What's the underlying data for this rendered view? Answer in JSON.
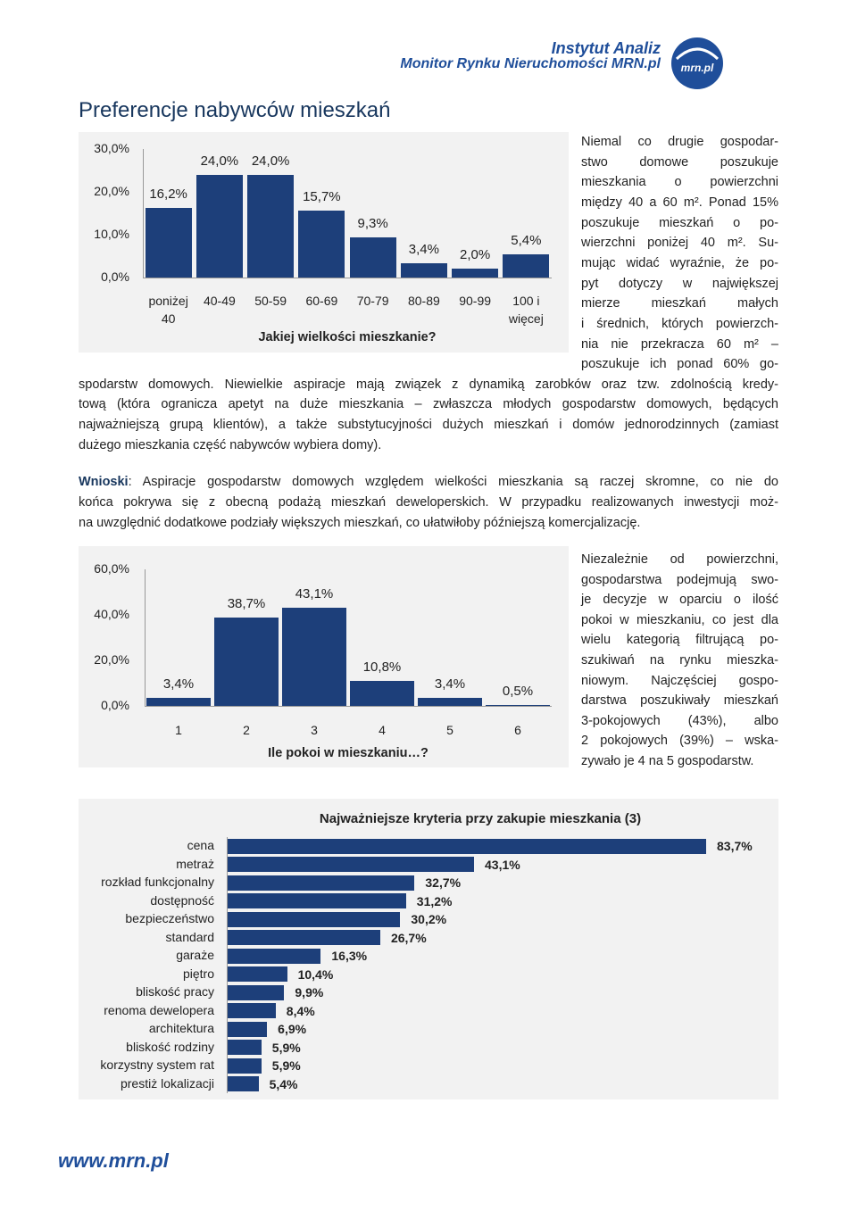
{
  "header": {
    "institute": "Instytut Analiz",
    "publication": "Monitor Rynku Nieruchomości MRN.pl",
    "logo_text": "mrn.pl"
  },
  "title": "Preferencje nabywców mieszkań",
  "paragraph_1": {
    "lines": [
      "Niemal co drugie gospodar-",
      "stwo domowe poszukuje",
      "mieszkania o powierzchni",
      "między 40 a 60 m². Ponad 15%",
      "poszukuje mieszkań o po-",
      "wierzchni poniżej 40 m². Su-",
      "mując widać wyraźnie, że po-",
      "pyt dotyczy w największej",
      "mierze mieszkań małych",
      "i średnich, których powierzch-",
      "nia nie przekracza 60 m² –",
      "poszukuje ich ponad 60% go-",
      "spodarstw domowych. Niewielkie aspiracje mają związek z dynamiką zarobków oraz tzw. zdolnością kredy-",
      "tową (która ogranicza apetyt na duże mieszkania – zwłaszcza młodych gospodarstw domowych, będących",
      "najważniejszą grupą klientów), a także substytucyjności dużych mieszkań i domów jednorodzinnych (zamiast",
      "dużego mieszkania część nabywców wybiera domy)."
    ]
  },
  "conclusion": {
    "label": "Wnioski",
    "lines": [
      ": Aspiracje gospodarstw domowych względem wielkości mieszkania są raczej skromne, co nie do",
      "końca pokrywa się z obecną podażą mieszkań deweloperskich. W przypadku realizowanych inwestycji moż-",
      "na uwzględnić dodatkowe podziały większych mieszkań, co ułatwiłoby późniejszą komercjalizację."
    ]
  },
  "paragraph_2": {
    "lines": [
      "Niezależnie od powierzchni,",
      "gospodarstwa podejmują swo-",
      "je decyzje w oparciu o ilość",
      "pokoi w mieszkaniu, co jest dla",
      "wielu kategorią filtrującą po-",
      "szukiwań na rynku mieszka-",
      "niowym. Najczęściej gospo-",
      "darstwa poszukiwały mieszkań",
      "3-pokojowych (43%), albo",
      "2 pokojowych (39%) – wska-",
      "zywało je 4 na 5 gospodarstw."
    ]
  },
  "chart_data": [
    {
      "type": "bar",
      "x_label": "Jakiej wielkości mieszkanie?",
      "categories": [
        "poniżej 40",
        "40-49",
        "50-59",
        "60-69",
        "70-79",
        "80-89",
        "90-99",
        "100 i więcej"
      ],
      "values": [
        16.2,
        24.0,
        24.0,
        15.7,
        9.3,
        3.4,
        2.0,
        5.4
      ],
      "value_labels": [
        "16,2%",
        "24,0%",
        "24,0%",
        "15,7%",
        "9,3%",
        "3,4%",
        "2,0%",
        "5,4%"
      ],
      "color": "#1d3f7a",
      "ylim": [
        0,
        30
      ],
      "yticks": [
        {
          "value": 0,
          "label": "0,0%"
        },
        {
          "value": 10,
          "label": "10,0%"
        },
        {
          "value": 20,
          "label": "20,0%"
        },
        {
          "value": 30,
          "label": "30,0%"
        }
      ],
      "grid": false
    },
    {
      "type": "bar",
      "x_label": "Ile pokoi w mieszkaniu…?",
      "categories": [
        "1",
        "2",
        "3",
        "4",
        "5",
        "6"
      ],
      "values": [
        3.4,
        38.7,
        43.1,
        10.8,
        3.4,
        0.5
      ],
      "value_labels": [
        "3,4%",
        "38,7%",
        "43,1%",
        "10,8%",
        "3,4%",
        "0,5%"
      ],
      "color": "#1d3f7a",
      "ylim": [
        0,
        60
      ],
      "yticks": [
        {
          "value": 0,
          "label": "0,0%"
        },
        {
          "value": 20,
          "label": "20,0%"
        },
        {
          "value": 40,
          "label": "40,0%"
        },
        {
          "value": 60,
          "label": "60,0%"
        }
      ],
      "grid": false
    },
    {
      "type": "barh",
      "title": "Najważniejsze kryteria przy zakupie mieszkania (3)",
      "categories": [
        "cena",
        "metraż",
        "rozkład funkcjonalny",
        "dostępność",
        "bezpieczeństwo",
        "standard",
        "garaże",
        "piętro",
        "bliskość pracy",
        "renoma dewelopera",
        "architektura",
        "bliskość rodziny",
        "korzystny system rat",
        "prestiż lokalizacji"
      ],
      "values": [
        83.7,
        43.1,
        32.7,
        31.2,
        30.2,
        26.7,
        16.3,
        10.4,
        9.9,
        8.4,
        6.9,
        5.9,
        5.9,
        5.4
      ],
      "value_labels": [
        "83,7%",
        "43,1%",
        "32,7%",
        "31,2%",
        "30,2%",
        "26,7%",
        "16,3%",
        "10,4%",
        "9,9%",
        "8,4%",
        "6,9%",
        "5,9%",
        "5,9%",
        "5,4%"
      ],
      "color": "#1d3f7a"
    }
  ],
  "footer": {
    "url": "www.mrn.pl"
  }
}
